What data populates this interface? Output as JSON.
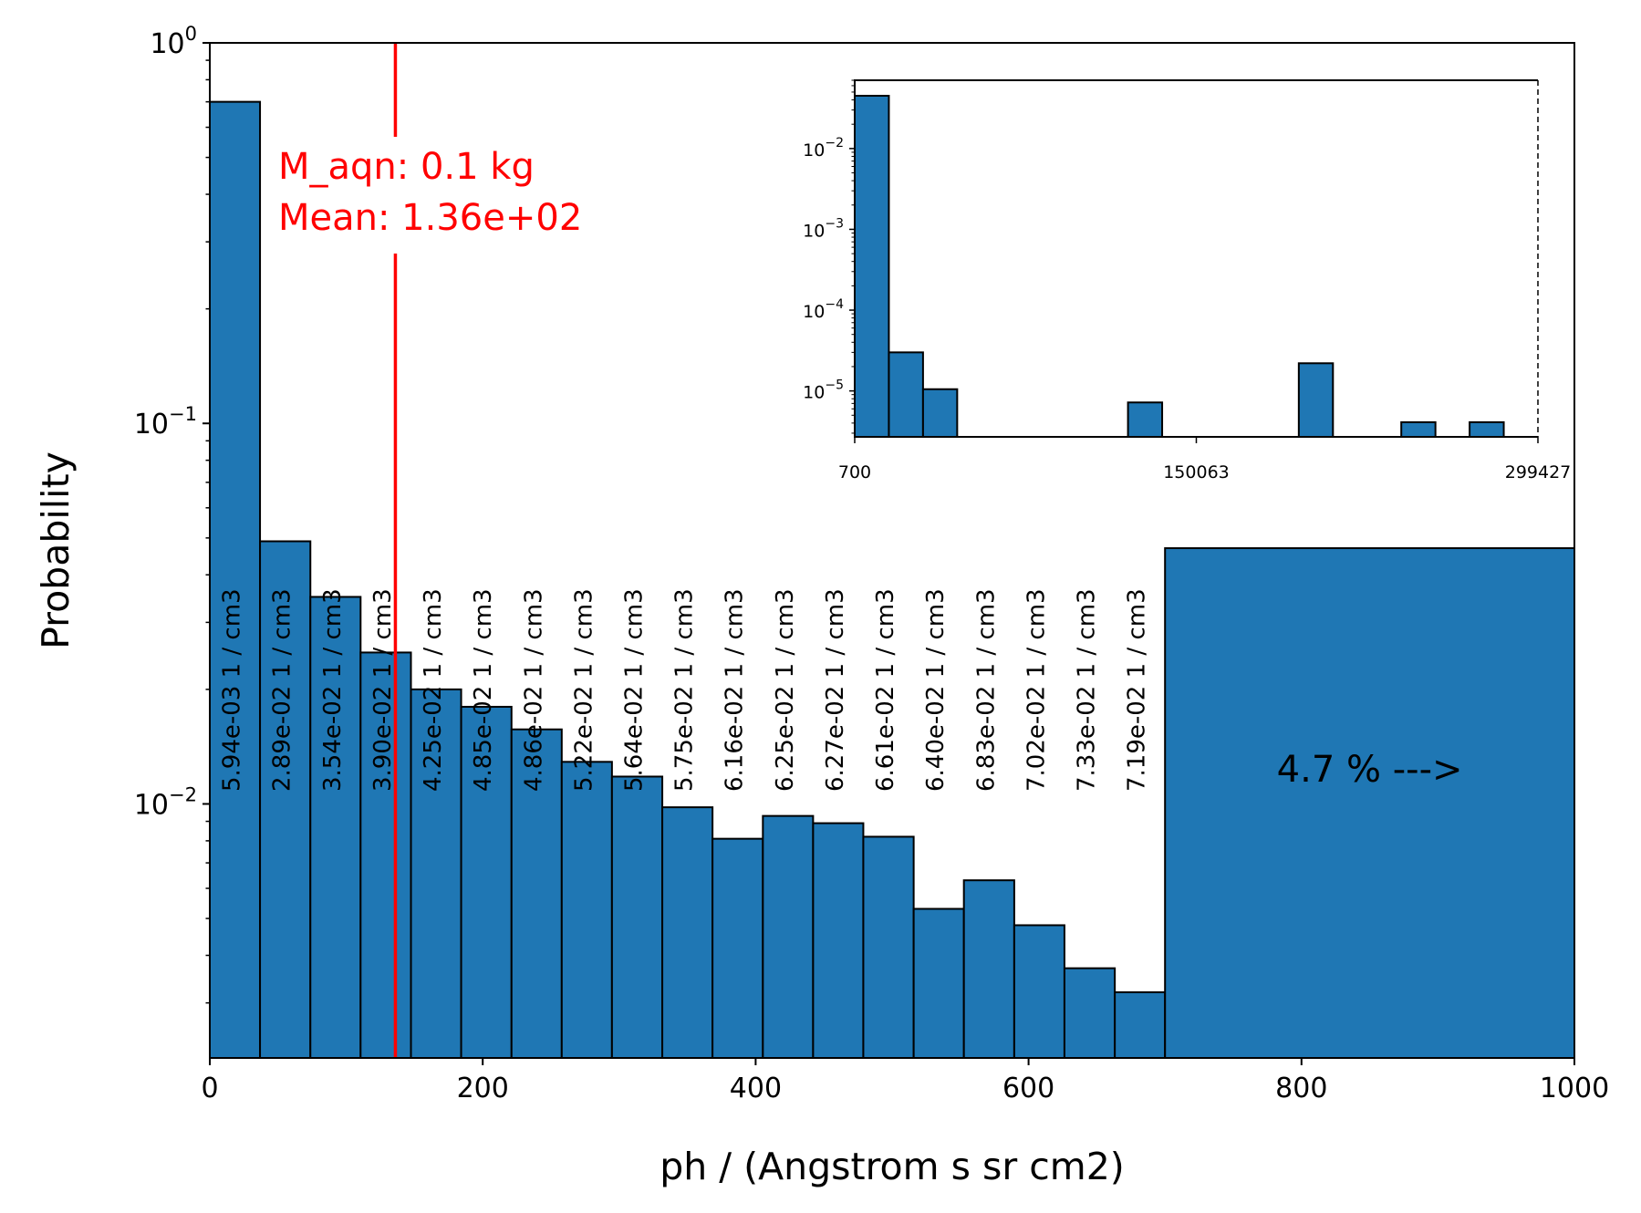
{
  "chart_data": [
    {
      "type": "bar",
      "ylabel": "Probability",
      "xlabel": "ph / (Angstrom s sr cm2)",
      "xlim": [
        0,
        1000
      ],
      "ylim": [
        0.00215,
        1.0
      ],
      "yscale": "log",
      "grid": false,
      "x_ticks": [
        "0",
        "200",
        "400",
        "600",
        "800",
        "1000"
      ],
      "x_tick_values": [
        0,
        200,
        400,
        600,
        800,
        1000
      ],
      "y_ticks": [
        {
          "value": 1.0,
          "base": "10",
          "exp": "0"
        },
        {
          "value": 0.1,
          "base": "10",
          "exp": "−1"
        },
        {
          "value": 0.01,
          "base": "10",
          "exp": "−2"
        }
      ],
      "bar_color": "#1f77b4",
      "bin_edges": [
        0,
        36.8,
        73.7,
        110.5,
        147.4,
        184.2,
        221.1,
        257.9,
        294.7,
        331.6,
        368.4,
        405.3,
        442.1,
        478.9,
        515.8,
        552.6,
        589.5,
        626.3,
        663.2,
        700
      ],
      "values": [
        0.7,
        0.049,
        0.035,
        0.025,
        0.02,
        0.018,
        0.0157,
        0.0129,
        0.0118,
        0.0098,
        0.0081,
        0.0093,
        0.0089,
        0.0082,
        0.0053,
        0.0063,
        0.0048,
        0.0037,
        0.0032
      ],
      "bar_labels": [
        "5.94e-03 1 / cm3",
        "2.89e-02 1 / cm3",
        "3.54e-02 1 / cm3",
        "3.90e-02 1 / cm3",
        "4.25e-02 1 / cm3",
        "4.85e-02 1 / cm3",
        "4.86e-02 1 / cm3",
        "5.22e-02 1 / cm3",
        "5.64e-02 1 / cm3",
        "5.75e-02 1 / cm3",
        "6.16e-02 1 / cm3",
        "6.25e-02 1 / cm3",
        "6.27e-02 1 / cm3",
        "6.61e-02 1 / cm3",
        "6.40e-02 1 / cm3",
        "6.83e-02 1 / cm3",
        "7.02e-02 1 / cm3",
        "7.33e-02 1 / cm3",
        "7.19e-02 1 / cm3"
      ],
      "overflow_bar": {
        "x_start": 700,
        "x_end": 1000,
        "value": 0.047,
        "label": "4.7 % --->"
      },
      "mean_line": {
        "x": 136,
        "color": "#ff0000"
      },
      "annotation": [
        "M_aqn: 0.1 kg",
        "Mean: 1.36e+02"
      ]
    },
    {
      "type": "bar",
      "inset": true,
      "yscale": "log",
      "xlim": [
        700,
        299427
      ],
      "ylim": [
        2.7e-06,
        0.07
      ],
      "x_ticks": [
        "700",
        "150063",
        "299427"
      ],
      "x_tick_values": [
        700,
        150063,
        299427
      ],
      "y_ticks": [
        {
          "value": 0.01,
          "base": "10",
          "exp": "−2"
        },
        {
          "value": 0.001,
          "base": "10",
          "exp": "−3"
        },
        {
          "value": 0.0001,
          "base": "10",
          "exp": "−4"
        },
        {
          "value": 1e-05,
          "base": "10",
          "exp": "−5"
        }
      ],
      "bars": [
        {
          "x_start": 700,
          "x_end": 15637,
          "value": 0.045
        },
        {
          "x_start": 15637,
          "x_end": 30573,
          "value": 3e-05
        },
        {
          "x_start": 30573,
          "x_end": 45510,
          "value": 1.05e-05
        },
        {
          "x_start": 120190,
          "x_end": 135127,
          "value": 7.2e-06
        },
        {
          "x_start": 194873,
          "x_end": 209810,
          "value": 2.2e-05
        },
        {
          "x_start": 239683,
          "x_end": 254620,
          "value": 4.1e-06
        },
        {
          "x_start": 269557,
          "x_end": 284490,
          "value": 4.1e-06
        }
      ]
    }
  ]
}
